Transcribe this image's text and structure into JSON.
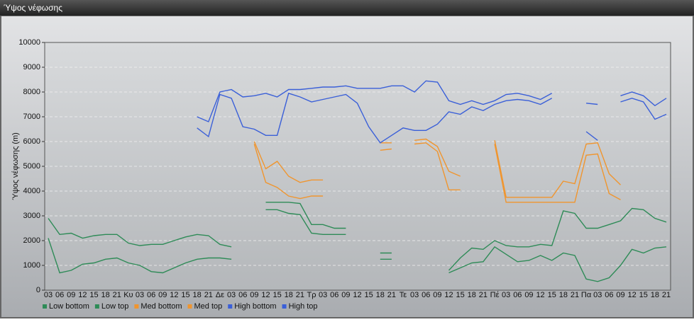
{
  "header": {
    "title": "Ύψος νέφωσης"
  },
  "chart_data": {
    "type": "line",
    "ylabel": "Ύψος νέφωσης (m)",
    "categories": [
      "03",
      "06",
      "09",
      "12",
      "15",
      "18",
      "21",
      "Κυ",
      "03",
      "06",
      "09",
      "12",
      "15",
      "18",
      "21",
      "Δε",
      "03",
      "06",
      "09",
      "12",
      "15",
      "18",
      "21",
      "Τρ",
      "03",
      "06",
      "09",
      "12",
      "15",
      "18",
      "21",
      "Τε",
      "03",
      "06",
      "09",
      "12",
      "15",
      "18",
      "21",
      "Πέ",
      "03",
      "06",
      "09",
      "12",
      "15",
      "18",
      "21",
      "Πα",
      "03",
      "06",
      "09",
      "12",
      "15",
      "18",
      "21"
    ],
    "ylim": [
      0,
      10000
    ],
    "yticks": [
      0,
      1000,
      2000,
      3000,
      4000,
      5000,
      6000,
      7000,
      8000,
      9000,
      10000
    ],
    "grid": true,
    "legend": "bottom",
    "series": [
      {
        "name": "Low bottom",
        "color": "#2e8b57",
        "values": [
          2100,
          700,
          800,
          1050,
          1100,
          1250,
          1300,
          1100,
          1000,
          750,
          700,
          900,
          1100,
          1250,
          1300,
          1300,
          1250,
          null,
          null,
          3250,
          3250,
          3100,
          3050,
          2300,
          2250,
          2250,
          2250,
          null,
          null,
          1250,
          1250,
          null,
          null,
          null,
          null,
          700,
          900,
          1100,
          1150,
          1750,
          1450,
          1150,
          1200,
          1400,
          1200,
          1500,
          1400,
          450,
          350,
          500,
          1000,
          1650,
          1500,
          1700,
          1750
        ]
      },
      {
        "name": "Low top",
        "color": "#2e8b57",
        "values": [
          2900,
          2250,
          2300,
          2100,
          2200,
          2250,
          2250,
          1900,
          1800,
          1850,
          1850,
          2000,
          2150,
          2250,
          2200,
          1850,
          1750,
          null,
          null,
          3550,
          3550,
          3550,
          3500,
          2650,
          2650,
          2500,
          2500,
          null,
          null,
          1500,
          1500,
          null,
          null,
          null,
          null,
          800,
          1300,
          1700,
          1650,
          2000,
          1800,
          1750,
          1750,
          1850,
          1800,
          3200,
          3100,
          2500,
          2500,
          2650,
          2800,
          3300,
          3250,
          2900,
          2750
        ]
      },
      {
        "name": "Med bottom",
        "color": "#f0952e",
        "values": [
          null,
          null,
          null,
          null,
          null,
          null,
          null,
          null,
          null,
          null,
          null,
          null,
          null,
          null,
          null,
          null,
          null,
          null,
          5900,
          4350,
          4150,
          3800,
          3700,
          3800,
          3800,
          null,
          null,
          null,
          null,
          5650,
          5700,
          null,
          5900,
          5950,
          5600,
          4050,
          4050,
          null,
          null,
          5900,
          3550,
          3550,
          3550,
          3550,
          3550,
          3550,
          3550,
          5450,
          5500,
          3900,
          3650,
          null,
          null,
          null,
          null
        ]
      },
      {
        "name": "Med top",
        "color": "#f0952e",
        "values": [
          null,
          null,
          null,
          null,
          null,
          null,
          null,
          null,
          null,
          null,
          null,
          null,
          null,
          null,
          null,
          null,
          null,
          null,
          6000,
          4900,
          5200,
          4600,
          4350,
          4450,
          4450,
          null,
          null,
          null,
          null,
          5950,
          5950,
          null,
          6050,
          6100,
          5800,
          4800,
          4600,
          null,
          null,
          6050,
          3750,
          3750,
          3750,
          3750,
          3750,
          4400,
          4300,
          5900,
          5950,
          4700,
          4250,
          null,
          null,
          null,
          null
        ]
      },
      {
        "name": "High bottom",
        "color": "#3a5fd8",
        "values": [
          null,
          null,
          null,
          null,
          null,
          null,
          null,
          null,
          null,
          null,
          null,
          null,
          null,
          6550,
          6200,
          7900,
          7750,
          6600,
          6500,
          6250,
          6250,
          7950,
          7800,
          7600,
          7700,
          7800,
          7900,
          7550,
          6600,
          5950,
          6250,
          6550,
          6450,
          6450,
          6700,
          7200,
          7100,
          7400,
          7250,
          7500,
          7650,
          7700,
          7650,
          7500,
          7750,
          null,
          null,
          6400,
          6050,
          null,
          7600,
          7750,
          7600,
          6900,
          7100
        ]
      },
      {
        "name": "High top",
        "color": "#3a5fd8",
        "values": [
          null,
          null,
          null,
          null,
          null,
          null,
          null,
          null,
          null,
          null,
          null,
          null,
          null,
          7000,
          6800,
          8000,
          8100,
          7800,
          7850,
          7950,
          7800,
          8100,
          8100,
          8150,
          8200,
          8200,
          8250,
          8150,
          8150,
          8150,
          8250,
          8250,
          8000,
          8450,
          8400,
          7650,
          7500,
          7650,
          7500,
          7650,
          7900,
          7950,
          7850,
          7700,
          7950,
          null,
          null,
          7550,
          7500,
          null,
          7850,
          8000,
          7850,
          7450,
          7750
        ]
      }
    ]
  }
}
